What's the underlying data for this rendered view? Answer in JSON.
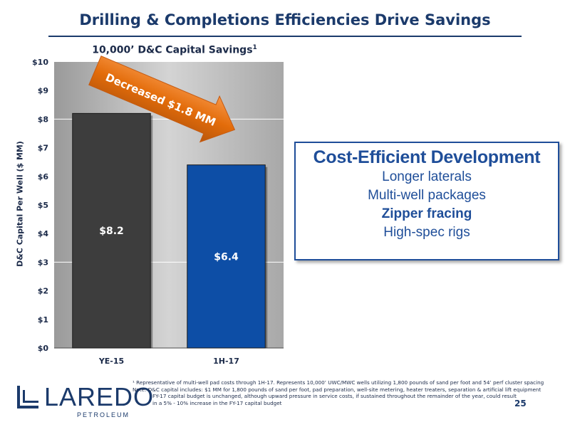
{
  "slide": {
    "title": "Drilling & Completions Efficiencies Drive Savings",
    "page_number": "25"
  },
  "chart_data": {
    "type": "bar",
    "title": "10,000’ D&C Capital Savings",
    "title_superscript": "1",
    "categories": [
      "YE-15",
      "1H-17"
    ],
    "values": [
      8.2,
      6.4
    ],
    "data_labels": [
      "$8.2",
      "$6.4"
    ],
    "bar_colors": [
      "#3d3d3d",
      "#0d4ea6"
    ],
    "ylabel": "D&C Capital Per Well ($ MM)",
    "ylim": [
      0,
      10
    ],
    "yticks": [
      "$0",
      "$1",
      "$2",
      "$3",
      "$4",
      "$5",
      "$6",
      "$7",
      "$8",
      "$9",
      "$10"
    ],
    "annotation": "Decreased $1.8 MM",
    "annotation_color": "#e36c0a",
    "plot_background": "#b8b8b8",
    "grid": true
  },
  "callout": {
    "title": "Cost-Efficient Development",
    "items": [
      {
        "text": "Longer laterals",
        "bold": false
      },
      {
        "text": "Multi-well packages",
        "bold": false
      },
      {
        "text": "Zipper fracing",
        "bold": true
      },
      {
        "text": "High-spec rigs",
        "bold": false
      }
    ]
  },
  "footnotes": {
    "line1": "¹ Representative of multi-well pad costs through 1H-17. Represents 10,000’ UWC/MWC wells utilizing 1,800 pounds of sand per foot and 54’ perf cluster spacing",
    "line2": "Note: D&C capital includes: $1 MM for 1,800 pounds of sand per foot, pad preparation, well-site metering, heater treaters, separation & artificial lift equipment",
    "line3": "FY-17 capital budget is unchanged, although upward pressure in service costs, if sustained throughout the remainder of the year, could result",
    "line4": "in a 5% - 10% increase in the FY-17 capital budget"
  },
  "logo": {
    "name": "LAREDO",
    "subtitle": "PETROLEUM",
    "color": "#1b3a6b"
  }
}
